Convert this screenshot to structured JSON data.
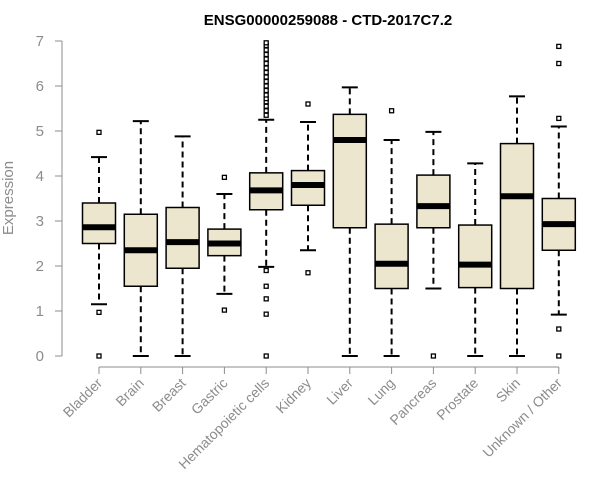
{
  "chart_data": {
    "type": "boxplot",
    "title": "ENSG00000259088 - CTD-2017C7.2",
    "xlabel": "",
    "ylabel": "Expression",
    "ylim": [
      0,
      7
    ],
    "yticks": [
      0,
      1,
      2,
      3,
      4,
      5,
      6,
      7
    ],
    "grid": false,
    "colors": {
      "box_fill": "#ede6cf",
      "stroke": "#000000",
      "axis": "#8c8c8c"
    },
    "categories": [
      "Bladder",
      "Brain",
      "Breast",
      "Gastric",
      "Hematopoietic cells",
      "Kidney",
      "Liver",
      "Lung",
      "Pancreas",
      "Prostate",
      "Skin",
      "Unknown / Other"
    ],
    "boxes": [
      {
        "name": "Bladder",
        "min": 1.15,
        "q1": 2.5,
        "median": 2.86,
        "q3": 3.4,
        "max": 4.42,
        "outliers": [
          0,
          0.97,
          4.97
        ]
      },
      {
        "name": "Brain",
        "min": 0,
        "q1": 1.55,
        "median": 2.35,
        "q3": 3.15,
        "max": 5.22,
        "outliers": []
      },
      {
        "name": "Breast",
        "min": 0,
        "q1": 1.95,
        "median": 2.53,
        "q3": 3.3,
        "max": 4.88,
        "outliers": []
      },
      {
        "name": "Gastric",
        "min": 1.38,
        "q1": 2.23,
        "median": 2.5,
        "q3": 2.82,
        "max": 3.6,
        "outliers": [
          1.02,
          3.97
        ]
      },
      {
        "name": "Hematopoietic cells",
        "min": 1.98,
        "q1": 3.25,
        "median": 3.68,
        "q3": 4.07,
        "max": 5.25,
        "outliers": [
          0,
          0.93,
          1.27,
          1.55,
          1.9,
          5.35,
          5.45,
          5.55,
          5.65,
          5.72,
          5.8,
          5.9,
          6.0,
          6.1,
          6.2,
          6.3,
          6.4,
          6.5,
          6.6,
          6.7,
          6.8,
          6.9,
          6.96
        ]
      },
      {
        "name": "Kidney",
        "min": 2.35,
        "q1": 3.35,
        "median": 3.8,
        "q3": 4.12,
        "max": 5.2,
        "outliers": [
          1.85,
          5.6
        ]
      },
      {
        "name": "Liver",
        "min": 0,
        "q1": 2.85,
        "median": 4.8,
        "q3": 5.37,
        "max": 5.97,
        "outliers": []
      },
      {
        "name": "Lung",
        "min": 0,
        "q1": 1.5,
        "median": 2.05,
        "q3": 2.93,
        "max": 4.8,
        "outliers": [
          5.45
        ]
      },
      {
        "name": "Pancreas",
        "min": 1.5,
        "q1": 2.85,
        "median": 3.33,
        "q3": 4.02,
        "max": 4.98,
        "outliers": [
          0
        ]
      },
      {
        "name": "Prostate",
        "min": 0,
        "q1": 1.52,
        "median": 2.03,
        "q3": 2.91,
        "max": 4.28,
        "outliers": []
      },
      {
        "name": "Skin",
        "min": 0,
        "q1": 1.5,
        "median": 3.55,
        "q3": 4.72,
        "max": 5.77,
        "outliers": []
      },
      {
        "name": "Unknown / Other",
        "min": 0.92,
        "q1": 2.35,
        "median": 2.93,
        "q3": 3.5,
        "max": 5.1,
        "outliers": [
          0,
          0.6,
          5.28,
          6.5,
          6.88
        ]
      }
    ]
  }
}
